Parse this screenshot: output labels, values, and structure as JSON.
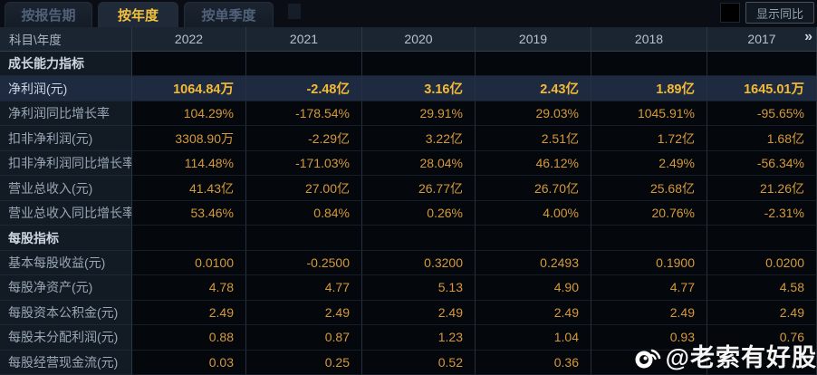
{
  "tabs": [
    {
      "label": "按报告期",
      "active": false
    },
    {
      "label": "按年度",
      "active": true
    },
    {
      "label": "按单季度",
      "active": false
    }
  ],
  "controls": {
    "show_yoy_label": "显示同比",
    "checkbox_checked": false
  },
  "table": {
    "corner_label": "科目\\年度",
    "years": [
      "2022",
      "2021",
      "2020",
      "2019",
      "2018",
      "2017"
    ],
    "more_icon": "»",
    "rows": [
      {
        "type": "section",
        "label": "成长能力指标"
      },
      {
        "type": "data",
        "label": "净利润(元)",
        "highlight": true,
        "values": [
          "1064.84万",
          "-2.48亿",
          "3.16亿",
          "2.43亿",
          "1.89亿",
          "1645.01万"
        ]
      },
      {
        "type": "data",
        "label": "净利润同比增长率",
        "values": [
          "104.29%",
          "-178.54%",
          "29.91%",
          "29.03%",
          "1045.91%",
          "-95.65%"
        ]
      },
      {
        "type": "data",
        "label": "扣非净利润(元)",
        "values": [
          "3308.90万",
          "-2.29亿",
          "3.22亿",
          "2.51亿",
          "1.72亿",
          "1.68亿"
        ]
      },
      {
        "type": "data",
        "label": "扣非净利润同比增长率",
        "values": [
          "114.48%",
          "-171.03%",
          "28.04%",
          "46.12%",
          "2.49%",
          "-56.34%"
        ]
      },
      {
        "type": "data",
        "label": "营业总收入(元)",
        "values": [
          "41.43亿",
          "27.00亿",
          "26.77亿",
          "26.70亿",
          "25.68亿",
          "21.26亿"
        ]
      },
      {
        "type": "data",
        "label": "营业总收入同比增长率",
        "values": [
          "53.46%",
          "0.84%",
          "0.26%",
          "4.00%",
          "20.76%",
          "-2.31%"
        ]
      },
      {
        "type": "section",
        "label": "每股指标"
      },
      {
        "type": "data",
        "label": "基本每股收益(元)",
        "values": [
          "0.0100",
          "-0.2500",
          "0.3200",
          "0.2493",
          "0.1900",
          "0.0200"
        ]
      },
      {
        "type": "data",
        "label": "每股净资产(元)",
        "values": [
          "4.78",
          "4.77",
          "5.13",
          "4.90",
          "4.77",
          "4.58"
        ]
      },
      {
        "type": "data",
        "label": "每股资本公积金(元)",
        "values": [
          "2.49",
          "2.49",
          "2.49",
          "2.49",
          "2.49",
          "2.49"
        ]
      },
      {
        "type": "data",
        "label": "每股未分配利润(元)",
        "values": [
          "0.88",
          "0.87",
          "1.23",
          "1.04",
          "0.93",
          "0.76"
        ]
      },
      {
        "type": "data",
        "label": "每股经营现金流(元)",
        "values": [
          "0.03",
          "0.25",
          "0.52",
          "0.36",
          "",
          ""
        ]
      }
    ]
  },
  "watermark": {
    "text": "@老索有好股",
    "icon": "weibo-icon"
  },
  "colors": {
    "accent_gold": "#f2c13d",
    "value_text": "#d5993c",
    "highlight_row_bg": "#1e2a40",
    "header_bg": "#1b2531",
    "label_col_bg": "#121a24",
    "data_cell_bg": "#04070b"
  }
}
